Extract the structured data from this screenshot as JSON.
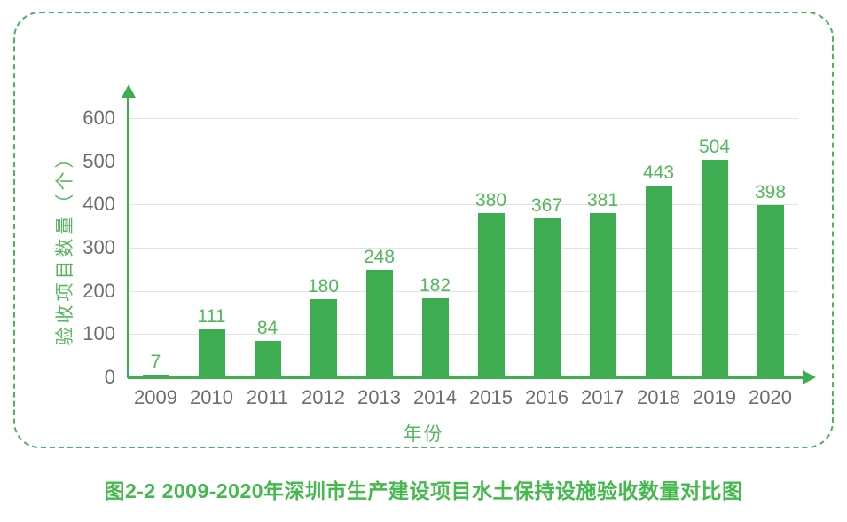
{
  "figure": {
    "caption": "图2-2 2009-2020年深圳市生产建设项目水土保持设施验收数量对比图"
  },
  "chart_data": {
    "type": "bar",
    "title": "",
    "categories": [
      "2009",
      "2010",
      "2011",
      "2012",
      "2013",
      "2014",
      "2015",
      "2016",
      "2017",
      "2018",
      "2019",
      "2020"
    ],
    "values": [
      7,
      111,
      84,
      180,
      248,
      182,
      380,
      367,
      381,
      443,
      504,
      398
    ],
    "xlabel": "年份",
    "ylabel": "验收项目数量（个）",
    "ylim": [
      0,
      600
    ],
    "ytick_step": 100,
    "yticks": [
      0,
      100,
      200,
      300,
      400,
      500,
      600
    ],
    "grid": true,
    "legend_position": "none",
    "bar_value_labels": true
  },
  "colors": {
    "bar": "#3EAC50",
    "axis": "#3EAC50",
    "value_label": "#55B75C",
    "tick_text": "#6E6E6E",
    "gridline": "#E2E2E2",
    "border": "#4CB45A",
    "caption": "#45B84E",
    "background": "#FFFFFF"
  }
}
